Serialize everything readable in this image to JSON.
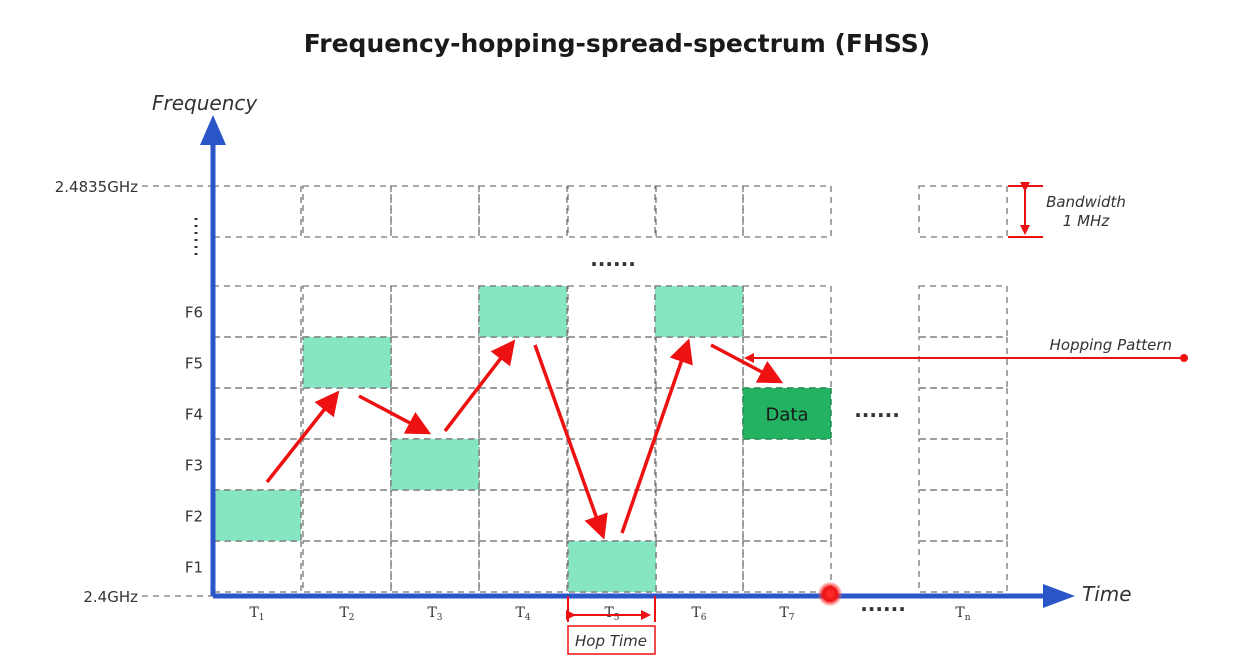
{
  "title": "Frequency-hopping-spread-spectrum (FHSS)",
  "axes": {
    "y_label": "Frequency",
    "x_label": "Time",
    "top_edge": "2.4835GHz",
    "bottom_edge": "2.4GHz"
  },
  "frequency_labels": [
    "F1",
    "F2",
    "F3",
    "F4",
    "F5",
    "F6"
  ],
  "time_slots": [
    {
      "base": "T",
      "sub": "1"
    },
    {
      "base": "T",
      "sub": "2"
    },
    {
      "base": "T",
      "sub": "3"
    },
    {
      "base": "T",
      "sub": "4"
    },
    {
      "base": "T",
      "sub": "5"
    },
    {
      "base": "T",
      "sub": "6"
    },
    {
      "base": "T",
      "sub": "7"
    },
    {
      "base": "T",
      "sub": "n"
    }
  ],
  "hops": [
    {
      "slot": 1,
      "freq": 2
    },
    {
      "slot": 2,
      "freq": 5
    },
    {
      "slot": 3,
      "freq": 3
    },
    {
      "slot": 4,
      "freq": 6
    },
    {
      "slot": 5,
      "freq": 1
    },
    {
      "slot": 6,
      "freq": 6
    },
    {
      "slot": 7,
      "freq": 4
    }
  ],
  "data_label": "Data",
  "ellipsis": "......",
  "vertical_ellipsis": "⋮",
  "annotations": {
    "bandwidth_line1": "Bandwidth",
    "bandwidth_line2": "1 MHz",
    "hopping_pattern": "Hopping Pattern",
    "hop_time": "Hop Time"
  },
  "colors": {
    "axis": "#2a56c8",
    "hop_fill": "#86e6c2",
    "data_fill": "#23b262",
    "arrow": "#ee1111"
  }
}
